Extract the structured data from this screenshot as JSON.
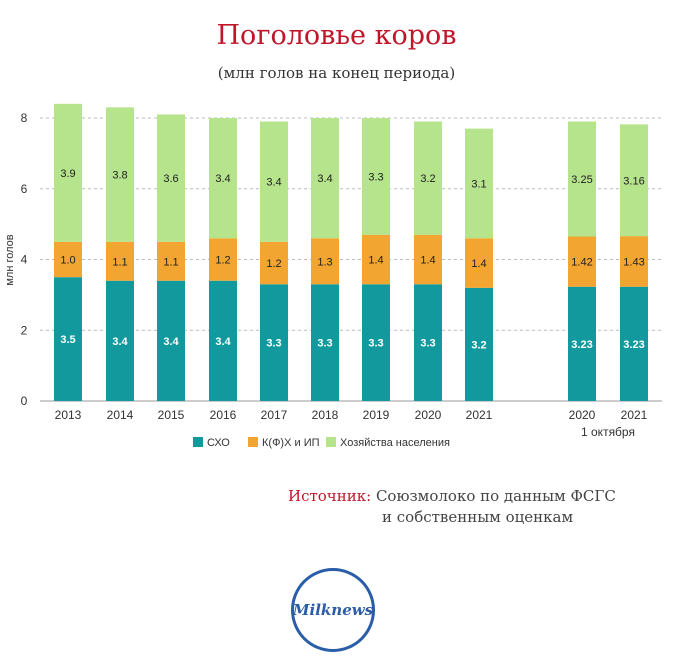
{
  "title": "Поголовье коров",
  "subtitle": "(млн голов на конец периода)",
  "source_label": "Источник:",
  "source_line1": "Союзмолоко по данным ФСГС",
  "source_line2": "и собственным оценкам",
  "logo_text": "Milknews",
  "colors": {
    "sho": "#12999e",
    "kfh": "#f2a531",
    "hh": "#b5e48c"
  },
  "chart_data": {
    "type": "bar",
    "stacked": true,
    "categories": [
      "2013",
      "2014",
      "2015",
      "2016",
      "2017",
      "2018",
      "2019",
      "2020",
      "2021",
      "2020",
      "2021"
    ],
    "category_note": "1 октября",
    "ylabel": "млн голов",
    "ylim": [
      0,
      8
    ],
    "yticks": [
      0,
      2,
      4,
      6,
      8
    ],
    "grid": true,
    "legend_position": "bottom",
    "series": [
      {
        "name": "СХО",
        "values": [
          3.5,
          3.4,
          3.4,
          3.4,
          3.3,
          3.3,
          3.3,
          3.3,
          3.2,
          3.23,
          3.23
        ],
        "labels": [
          "3.5",
          "3.4",
          "3.4",
          "3.4",
          "3.3",
          "3.3",
          "3.3",
          "3.3",
          "3.2",
          "3.23",
          "3.23"
        ]
      },
      {
        "name": "К(Ф)Х и ИП",
        "values": [
          1.0,
          1.1,
          1.1,
          1.2,
          1.2,
          1.3,
          1.4,
          1.4,
          1.4,
          1.42,
          1.43
        ],
        "labels": [
          "1.0",
          "1.1",
          "1.1",
          "1.2",
          "1.2",
          "1.3",
          "1.4",
          "1.4",
          "1.4",
          "1.42",
          "1.43"
        ]
      },
      {
        "name": "Хозяйства населения",
        "values": [
          3.9,
          3.8,
          3.6,
          3.4,
          3.4,
          3.4,
          3.3,
          3.2,
          3.1,
          3.25,
          3.16
        ],
        "labels": [
          "3.9",
          "3.8",
          "3.6",
          "3.4",
          "3.4",
          "3.4",
          "3.3",
          "3.2",
          "3.1",
          "3.25",
          "3.16"
        ]
      }
    ]
  }
}
